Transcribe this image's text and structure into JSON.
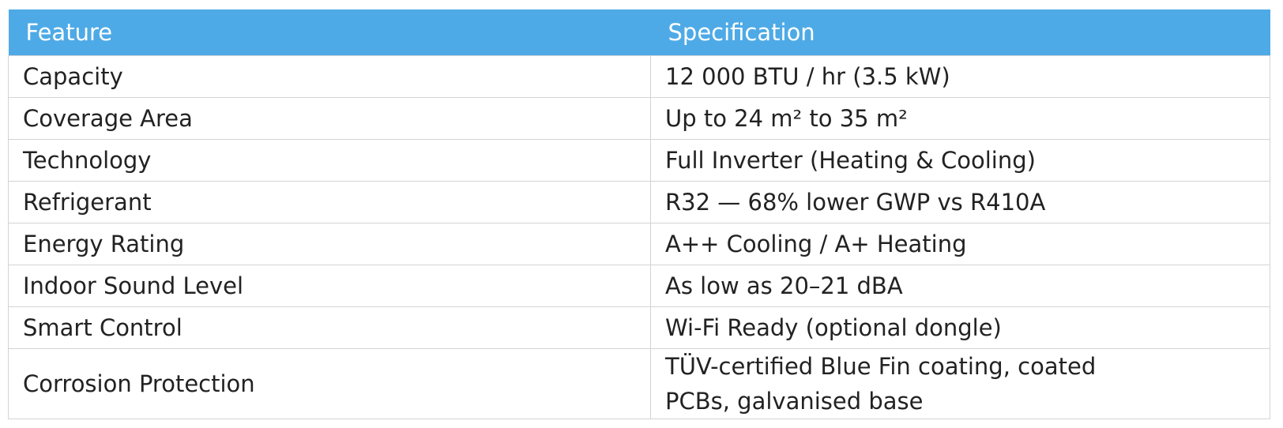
{
  "table": {
    "header": [
      "Feature",
      "Specification"
    ],
    "rows": [
      [
        "Capacity",
        "12 000 BTU / hr (3.5 kW)"
      ],
      [
        "Coverage Area",
        "Up to 24 m² to 35 m²"
      ],
      [
        "Technology",
        "Full Inverter (Heating & Cooling)"
      ],
      [
        "Refrigerant",
        "R32 — 68% lower GWP vs R410A"
      ],
      [
        "Energy Rating",
        "A++ Cooling / A+ Heating"
      ],
      [
        "Indoor Sound Level",
        "As low as 20–21 dBA"
      ],
      [
        "Smart Control",
        "Wi-Fi Ready (optional dongle)"
      ],
      [
        "Corrosion Protection",
        "TÜV-certified Blue Fin coating, coated PCBs, galvanised base"
      ]
    ]
  }
}
